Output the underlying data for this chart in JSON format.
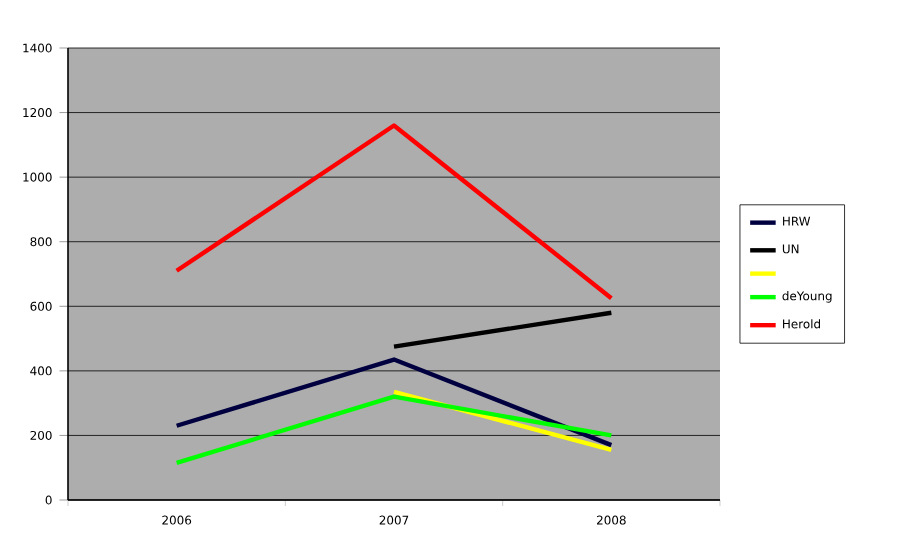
{
  "chart_data": {
    "type": "line",
    "categories": [
      "2006",
      "2007",
      "2008"
    ],
    "series": [
      {
        "name": "HRW",
        "color": "#000040",
        "values": [
          230,
          435,
          170
        ]
      },
      {
        "name": "UN",
        "color": "#000000",
        "values": [
          null,
          475,
          580
        ]
      },
      {
        "color": "#ffff00",
        "values": [
          null,
          335,
          155
        ]
      },
      {
        "name": "deYoung",
        "color": "#00ff00",
        "values": [
          115,
          320,
          200
        ]
      },
      {
        "name": "Herold",
        "color": "#ff0000",
        "values": [
          710,
          1160,
          625
        ]
      }
    ],
    "ylim": [
      0,
      1400
    ],
    "yticks": [
      0,
      200,
      400,
      600,
      800,
      1000,
      1200,
      1400
    ],
    "grid": "y",
    "legend": "right",
    "marker": "none",
    "line_style": "solid"
  }
}
